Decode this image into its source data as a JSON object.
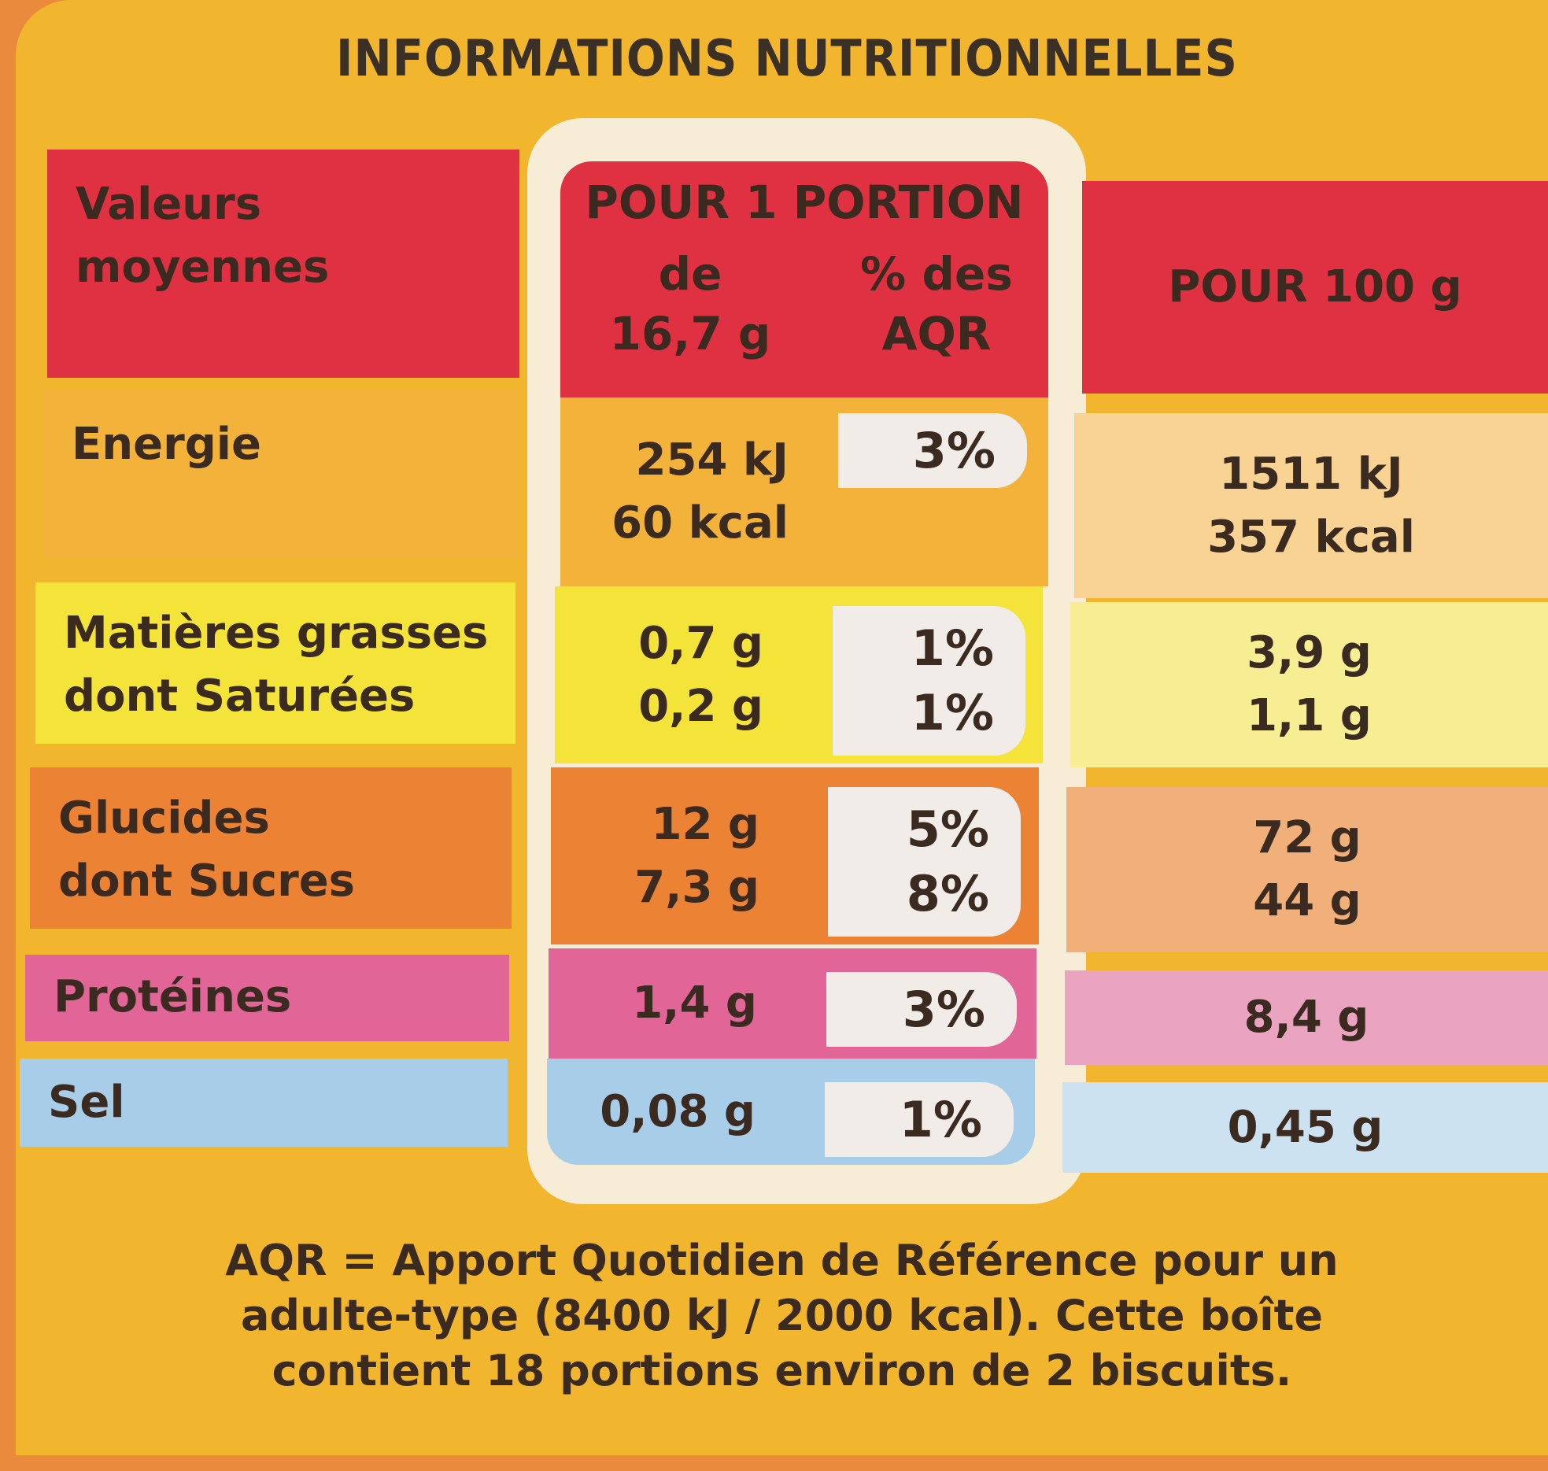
{
  "title": "INFORMATIONS NUTRITIONNELLES",
  "header": {
    "label_col": [
      "Valeurs",
      "moyennes"
    ],
    "portion_title": "POUR 1 PORTION",
    "portion_amount": [
      "de",
      "16,7 g"
    ],
    "portion_pct": [
      "% des",
      "AQR"
    ],
    "per100": "POUR 100 g"
  },
  "rows": [
    {
      "label": [
        "Energie"
      ],
      "portion": [
        "254 kJ",
        "60 kcal"
      ],
      "pct": [
        "3%"
      ],
      "per100": [
        "1511 kJ",
        "357 kcal"
      ]
    },
    {
      "label": [
        "Matières grasses",
        "dont Saturées"
      ],
      "portion": [
        "0,7 g",
        "0,2 g"
      ],
      "pct": [
        "1%",
        "1%"
      ],
      "per100": [
        "3,9 g",
        "1,1 g"
      ]
    },
    {
      "label": [
        "Glucides",
        "dont Sucres"
      ],
      "portion": [
        "12 g",
        "7,3 g"
      ],
      "pct": [
        "5%",
        "8%"
      ],
      "per100": [
        "72 g",
        "44 g"
      ]
    },
    {
      "label": [
        "Protéines"
      ],
      "portion": [
        "1,4 g"
      ],
      "pct": [
        "3%"
      ],
      "per100": [
        "8,4 g"
      ]
    },
    {
      "label": [
        "Sel"
      ],
      "portion": [
        "0,08 g"
      ],
      "pct": [
        "1%"
      ],
      "per100": [
        "0,45 g"
      ]
    }
  ],
  "footer": [
    "AQR = Apport Quotidien de Référence pour un",
    "adulte-type (8400 kJ / 2000 kcal). Cette boîte",
    "contient 18 portions environ de 2 biscuits."
  ],
  "colors": {
    "header": "#df3142",
    "energie": [
      "#f3b23a",
      "#f8d394"
    ],
    "graisses": [
      "#f4e43a",
      "#f7ee93"
    ],
    "glucides": [
      "#ec8233",
      "#f1b07a"
    ],
    "proteines": [
      "#e16597",
      "#eba4c0"
    ],
    "sel": [
      "#a7cde9",
      "#cde2f1"
    ]
  }
}
